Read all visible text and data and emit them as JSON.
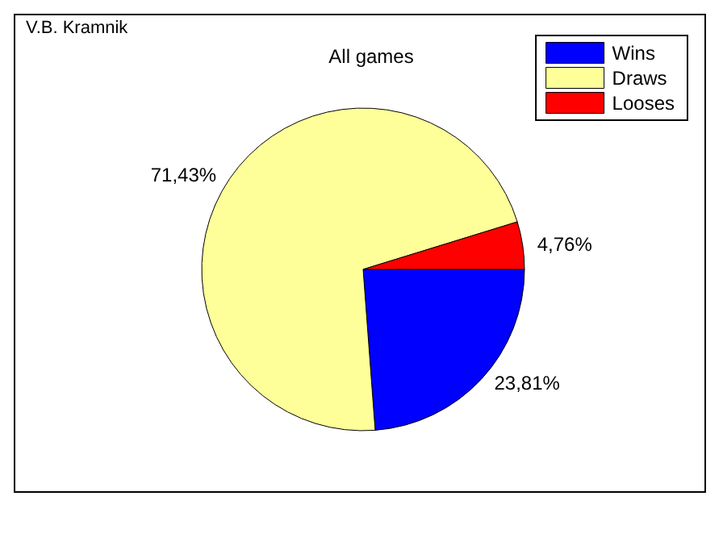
{
  "chart_data": {
    "type": "pie",
    "title": "All games",
    "annotations": [
      "V.B. Kramnik"
    ],
    "categories": [
      "Wins",
      "Draws",
      "Looses"
    ],
    "values": [
      23.81,
      71.43,
      4.76
    ],
    "colors": [
      "#0000ff",
      "#ffff99",
      "#ff0000"
    ],
    "value_labels": [
      "23,81%",
      "71,43%",
      "4,76%"
    ],
    "legend": "top right"
  }
}
